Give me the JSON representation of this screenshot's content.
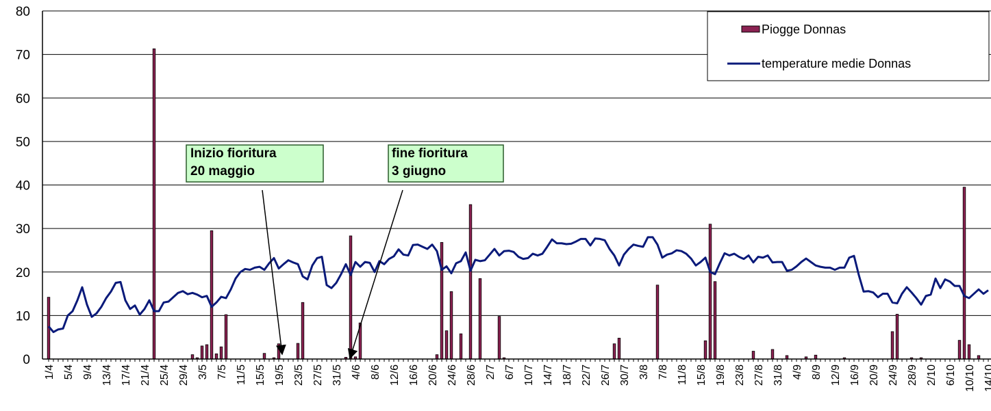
{
  "chart_data": {
    "type": "bar",
    "categories": [
      "1/4",
      null,
      null,
      null,
      "5/4",
      null,
      null,
      null,
      "9/4",
      null,
      null,
      null,
      "13/4",
      null,
      null,
      null,
      "17/4",
      null,
      null,
      null,
      "21/4",
      null,
      null,
      null,
      "25/4",
      null,
      null,
      null,
      "29/4",
      null,
      null,
      null,
      "3/5",
      null,
      null,
      null,
      "7/5",
      null,
      null,
      null,
      "11/5",
      null,
      null,
      null,
      "15/5",
      null,
      null,
      null,
      "19/5",
      null,
      null,
      null,
      "23/5",
      null,
      null,
      null,
      "27/5",
      null,
      null,
      null,
      "31/5",
      null,
      null,
      null,
      "4/6",
      null,
      null,
      null,
      "8/6",
      null,
      null,
      null,
      "12/6",
      null,
      null,
      null,
      "16/6",
      null,
      null,
      null,
      "20/6",
      null,
      null,
      null,
      "24/6",
      null,
      null,
      null,
      "28/6",
      null,
      null,
      null,
      "2/7",
      null,
      null,
      null,
      "6/7",
      null,
      null,
      null,
      "10/7",
      null,
      null,
      null,
      "14/7",
      null,
      null,
      null,
      "18/7",
      null,
      null,
      null,
      "22/7",
      null,
      null,
      null,
      "26/7",
      null,
      null,
      null,
      "30/7",
      null,
      null,
      null,
      "3/8",
      null,
      null,
      null,
      "7/8",
      null,
      null,
      null,
      "11/8",
      null,
      null,
      null,
      "15/8",
      null,
      null,
      null,
      "19/8",
      null,
      null,
      null,
      "23/8",
      null,
      null,
      null,
      "27/8",
      null,
      null,
      null,
      "31/8",
      null,
      null,
      null,
      "4/9",
      null,
      null,
      null,
      "8/9",
      null,
      null,
      null,
      "12/9",
      null,
      null,
      null,
      "16/9",
      null,
      null,
      null,
      "20/9",
      null,
      null,
      null,
      "24/9",
      null,
      null,
      null,
      "28/9",
      null,
      null,
      null,
      "2/10",
      null,
      null,
      null,
      "6/10",
      null,
      null,
      null,
      "10/10",
      null,
      null,
      null,
      "14/10"
    ],
    "series": [
      {
        "name": "Piogge Donnas",
        "type": "bar",
        "color": "#8b2252",
        "values": [
          14.2,
          0,
          0,
          0,
          0,
          0,
          0,
          0,
          0,
          0,
          0,
          0,
          0,
          0,
          0,
          0,
          0,
          0,
          0,
          0,
          0,
          0,
          71.3,
          0,
          0,
          0,
          0,
          0,
          0,
          0,
          1,
          0.3,
          3,
          3.3,
          29.5,
          1.2,
          2.8,
          10.2,
          0,
          0,
          0,
          0,
          0,
          0,
          0,
          1.3,
          0,
          0.3,
          3.5,
          0,
          0,
          0,
          3.6,
          13,
          0,
          0,
          0,
          0,
          0,
          0,
          0,
          0,
          0.4,
          28.3,
          0.5,
          8.3,
          0,
          0,
          0,
          0,
          0,
          0,
          0,
          0,
          0,
          0,
          0,
          0,
          0,
          0,
          0,
          1,
          26.8,
          6.5,
          15.5,
          0,
          5.8,
          0,
          35.5,
          0,
          18.5,
          0,
          0,
          0,
          9.8,
          0.3,
          0,
          0,
          0,
          0,
          0,
          0,
          0,
          0,
          0,
          0,
          0,
          0,
          0,
          0,
          0,
          0,
          0,
          0,
          0,
          0,
          0,
          0,
          3.5,
          4.8,
          0,
          0,
          0,
          0,
          0,
          0,
          0,
          17,
          0,
          0,
          0,
          0,
          0,
          0,
          0,
          0,
          0,
          4.2,
          31,
          17.8,
          0,
          0,
          0,
          0,
          0,
          0,
          0,
          1.8,
          0,
          0,
          0,
          2.2,
          0,
          0,
          0.8,
          0,
          0,
          0,
          0.5,
          0,
          0.9,
          0,
          0,
          0,
          0,
          0,
          0.3,
          0,
          0,
          0,
          0,
          0,
          0,
          0,
          0,
          0,
          6.3,
          10.3,
          0,
          0,
          0.3,
          0,
          0.3,
          0,
          0,
          0,
          0,
          0,
          0,
          0,
          4.3,
          39.5,
          3.3,
          0,
          0.8,
          0,
          0
        ]
      },
      {
        "name": "temperature medie Donnas",
        "type": "line",
        "color": "#0a1a7a",
        "values": [
          7.5,
          6.2,
          6.8,
          7,
          10,
          11,
          13.5,
          16.5,
          12.5,
          9.7,
          10.5,
          12,
          14,
          15.5,
          17.5,
          17.7,
          13.5,
          11.5,
          12.3,
          10.2,
          11.5,
          13.5,
          11,
          11,
          13,
          13.2,
          14.2,
          15.2,
          15.6,
          14.9,
          15.2,
          14.8,
          14.2,
          14.5,
          12,
          13,
          14.3,
          14,
          16,
          18.5,
          20,
          20.7,
          20.5,
          21,
          21.2,
          20.5,
          22,
          23.2,
          20.8,
          21.8,
          22.7,
          22.2,
          21.8,
          19,
          18.3,
          21.5,
          23.2,
          23.5,
          17,
          16.3,
          17.5,
          19.5,
          21.8,
          19.3,
          22.3,
          21.2,
          22.3,
          22.1,
          20,
          22.5,
          21.8,
          23,
          23.6,
          25.2,
          24,
          23.8,
          26.2,
          26.3,
          25.8,
          25.3,
          26.3,
          24.8,
          20.5,
          21.3,
          19.7,
          22,
          22.5,
          24.5,
          20.3,
          22.8,
          22.5,
          22.7,
          24,
          25.3,
          23.8,
          24.8,
          24.9,
          24.6,
          23.5,
          23,
          23.2,
          24.2,
          23.8,
          24.2,
          25.8,
          27.5,
          26.6,
          26.6,
          26.4,
          26.5,
          27,
          27.6,
          27.6,
          26.1,
          27.7,
          27.6,
          27.3,
          25.3,
          23.8,
          21.5,
          24,
          25.3,
          26.3,
          26,
          25.8,
          28,
          28,
          26.3,
          23.3,
          24,
          24.3,
          25,
          24.8,
          24.2,
          23.1,
          21.5,
          22.3,
          23.3,
          20,
          19.5,
          22,
          24.3,
          23.8,
          24.2,
          23.5,
          23,
          23.8,
          22.2,
          23.5,
          23.3,
          23.8,
          22.2,
          22.3,
          22.3,
          20.3,
          20.5,
          21.3,
          22.3,
          23.1,
          22.3,
          21.5,
          21.2,
          21,
          21,
          20.5,
          21,
          21,
          23.3,
          23.7,
          19.3,
          15.5,
          15.6,
          15.3,
          14.2,
          15,
          15,
          13,
          12.8,
          15,
          16.5,
          15.3,
          14,
          12.5,
          14.5,
          14.8,
          18.5,
          16.3,
          18.3,
          17.8,
          16.8,
          16.8,
          14.5,
          14,
          15,
          16,
          15,
          15.8
        ]
      }
    ],
    "ylim": [
      0,
      80
    ],
    "yticks": [
      0,
      10,
      20,
      30,
      40,
      50,
      60,
      70,
      80
    ],
    "grid": true,
    "legend": "top-right",
    "annotations": [
      {
        "lines": [
          "Inizio fioritura",
          "20 maggio"
        ]
      },
      {
        "lines": [
          "fine fioritura",
          "3 giugno"
        ]
      }
    ]
  }
}
